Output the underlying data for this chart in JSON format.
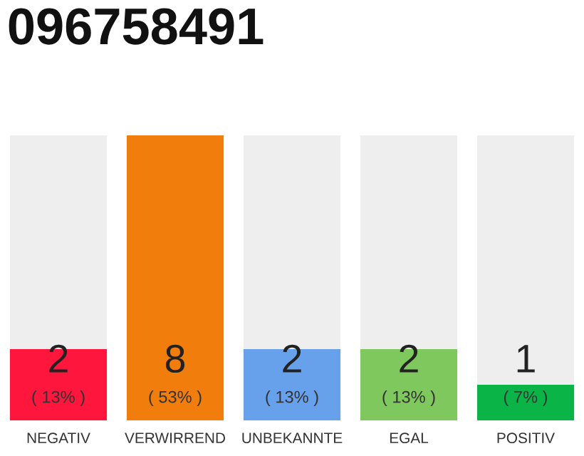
{
  "chart_data": {
    "type": "bar",
    "title": "096758491",
    "stacked": true,
    "categories": [
      "NEGATIV",
      "VERWIRREND",
      "UNBEKANNTE",
      "EGAL",
      "POSITIV"
    ],
    "series": [
      {
        "colors": [
          "#ff163c",
          "#f07d0c",
          "#67a1ec",
          "#7ec85e",
          "#0bb446"
        ],
        "values": [
          2,
          8,
          2,
          2,
          1
        ],
        "value_labels": [
          "2",
          "8",
          "2",
          "2",
          "1"
        ]
      },
      {
        "color": "#eeeeee",
        "values": [
          6,
          0,
          6,
          6,
          7
        ]
      }
    ],
    "annotations": [
      "( 13% )",
      "( 53% )",
      "( 13% )",
      "( 13% )",
      "( 7% )"
    ]
  }
}
